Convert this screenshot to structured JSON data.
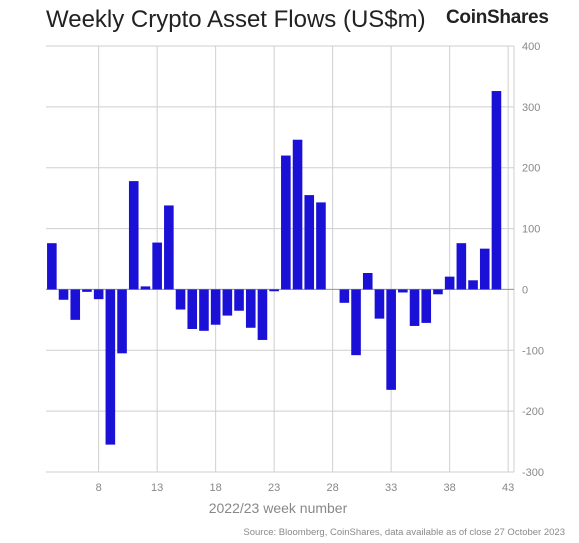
{
  "header": {
    "title": "Weekly Crypto Asset Flows (US$m)",
    "brand": "CoinShares"
  },
  "footer": {
    "source": "Source: Bloomberg, CoinShares, data available as of close 27 October 2023"
  },
  "colors": {
    "bar": "#1a10d6",
    "grid": "#cfcfcf",
    "tick_text": "#888888"
  },
  "chart_data": {
    "type": "bar",
    "title": "Weekly Crypto Asset Flows (US$m)",
    "xlabel": "2022/23 week number",
    "ylabel": "",
    "x": [
      4,
      5,
      6,
      7,
      8,
      9,
      10,
      11,
      12,
      13,
      14,
      15,
      16,
      17,
      18,
      19,
      20,
      21,
      22,
      23,
      24,
      25,
      26,
      27,
      28,
      29,
      30,
      31,
      32,
      33,
      34,
      35,
      36,
      37,
      38,
      39,
      40,
      41,
      42,
      43
    ],
    "values": [
      76,
      -17,
      -50,
      -4,
      -16,
      -255,
      -105,
      178,
      5,
      77,
      138,
      -33,
      -65,
      -68,
      -58,
      -43,
      -35,
      -63,
      -83,
      -3,
      220,
      246,
      155,
      143,
      0,
      -22,
      -108,
      27,
      -48,
      -165,
      -5,
      -60,
      -55,
      -8,
      21,
      76,
      15,
      67,
      326,
      0
    ],
    "xticks": [
      8,
      13,
      18,
      23,
      28,
      33,
      38,
      43
    ],
    "yticks": [
      400,
      300,
      200,
      100,
      0,
      -100,
      -200,
      -300
    ],
    "ylim": [
      -300,
      400
    ],
    "y_axis_side": "right",
    "grid": true
  }
}
